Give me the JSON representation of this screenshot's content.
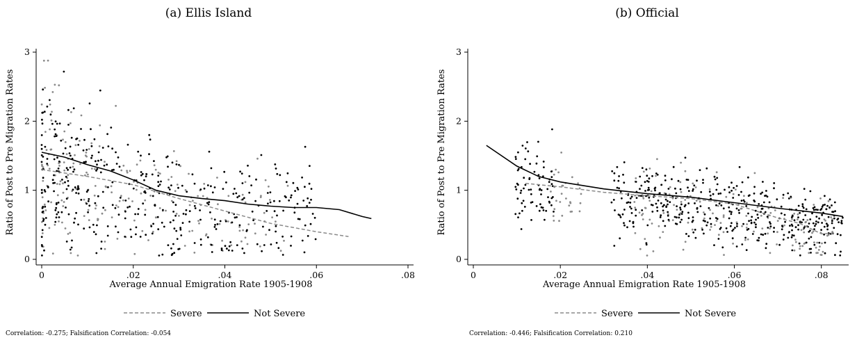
{
  "chart_data": [
    {
      "type": "scatter",
      "title": "(a) Ellis Island",
      "xlabel": "Average Annual Emigration Rate 1905-1908",
      "ylabel": "Ratio of Post to Pre Migration Rates",
      "xlim": [
        0,
        0.08
      ],
      "ylim": [
        0,
        3
      ],
      "x_ticks": [
        "0",
        ".02",
        ".04",
        ".06",
        ".08"
      ],
      "y_ticks": [
        "0",
        "1",
        "2",
        "3"
      ],
      "grid": false,
      "legend_position": "bottom",
      "note": "Correlation: -0.275; Falsification Correlation: -0.054",
      "series": [
        {
          "name": "Severe",
          "color": "#8a8a8a",
          "line_style": "dashed",
          "points_summary": {
            "count": 230,
            "x_range": [
              0.0,
              0.055
            ],
            "y_center": 1.0
          },
          "fit": [
            [
              0.0,
              1.3
            ],
            [
              0.01,
              1.2
            ],
            [
              0.02,
              1.08
            ],
            [
              0.03,
              0.88
            ],
            [
              0.04,
              0.7
            ],
            [
              0.05,
              0.52
            ],
            [
              0.06,
              0.4
            ],
            [
              0.067,
              0.33
            ]
          ]
        },
        {
          "name": "Not Severe",
          "color": "#000000",
          "line_style": "solid",
          "points_summary": {
            "count": 420,
            "x_range": [
              0.0,
              0.06
            ],
            "y_center": 0.95
          },
          "fit": [
            [
              0.0,
              1.55
            ],
            [
              0.005,
              1.48
            ],
            [
              0.01,
              1.37
            ],
            [
              0.015,
              1.28
            ],
            [
              0.02,
              1.15
            ],
            [
              0.025,
              1.0
            ],
            [
              0.03,
              0.92
            ],
            [
              0.035,
              0.88
            ],
            [
              0.04,
              0.85
            ],
            [
              0.045,
              0.8
            ],
            [
              0.05,
              0.77
            ],
            [
              0.055,
              0.75
            ],
            [
              0.06,
              0.75
            ],
            [
              0.065,
              0.72
            ],
            [
              0.07,
              0.62
            ],
            [
              0.072,
              0.59
            ]
          ]
        }
      ]
    },
    {
      "type": "scatter",
      "title": "(b) Official",
      "xlabel": "Average Annual Emigration Rate 1905-1908",
      "ylabel": "Ratio of Post to Pre Migration Rates",
      "xlim": [
        0,
        0.085
      ],
      "ylim": [
        0,
        3
      ],
      "x_ticks": [
        "0",
        ".02",
        ".04",
        ".06",
        ".08"
      ],
      "y_ticks": [
        "0",
        "1",
        "2",
        "3"
      ],
      "grid": false,
      "legend_position": "bottom",
      "note": "Correlation: -0.446; Falsification Correlation: 0.210",
      "series": [
        {
          "name": "Severe",
          "color": "#8a8a8a",
          "line_style": "dashed",
          "points_summary": {
            "count": 200,
            "x_range": [
              0.012,
              0.083
            ],
            "y_center": 0.9
          },
          "fit": [
            [
              0.012,
              1.1
            ],
            [
              0.02,
              1.05
            ],
            [
              0.03,
              0.97
            ],
            [
              0.04,
              0.92
            ],
            [
              0.05,
              0.88
            ],
            [
              0.06,
              0.8
            ],
            [
              0.065,
              0.7
            ],
            [
              0.07,
              0.6
            ],
            [
              0.075,
              0.52
            ],
            [
              0.08,
              0.37
            ],
            [
              0.083,
              0.38
            ]
          ]
        },
        {
          "name": "Not Severe",
          "color": "#000000",
          "line_style": "solid",
          "points_summary": {
            "count": 500,
            "x_range": [
              0.003,
              0.085
            ],
            "y_center": 0.95
          },
          "fit": [
            [
              0.003,
              1.65
            ],
            [
              0.01,
              1.35
            ],
            [
              0.015,
              1.2
            ],
            [
              0.02,
              1.12
            ],
            [
              0.03,
              1.02
            ],
            [
              0.04,
              0.95
            ],
            [
              0.05,
              0.9
            ],
            [
              0.06,
              0.82
            ],
            [
              0.07,
              0.74
            ],
            [
              0.08,
              0.67
            ],
            [
              0.085,
              0.62
            ]
          ]
        }
      ]
    }
  ]
}
